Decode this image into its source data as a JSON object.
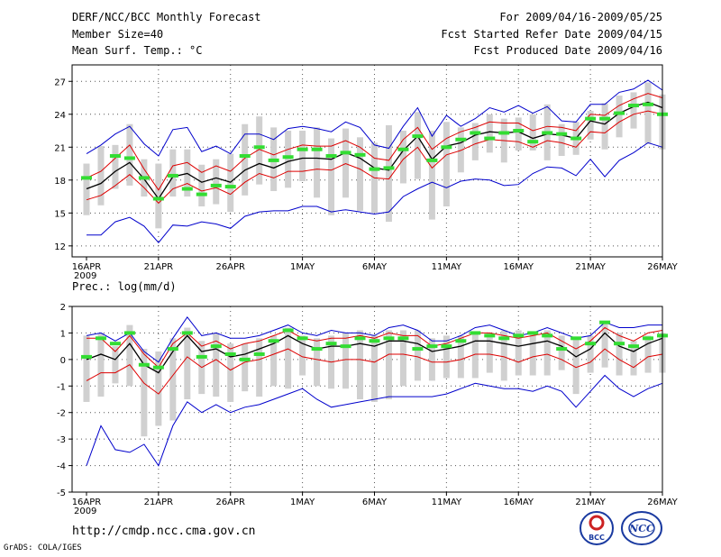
{
  "header": {
    "title": "DERF/NCC/BCC Monthly Forecast",
    "member_size": "Member Size=40",
    "variable": "Mean Surf. Temp.: °C",
    "period": "For 2009/04/16-2009/05/25",
    "started": "Fcst Started Refer Date 2009/04/15",
    "produced": "Fcst Produced Date 2009/04/16"
  },
  "footer": {
    "url": "http://cmdp.ncc.cma.gov.cn",
    "credit": "GrADS: COLA/IGES",
    "logo_bcc": "BCC",
    "logo_ncc": "NCC"
  },
  "colors": {
    "envelope": "#0000cc",
    "spread": "#dd0000",
    "mean": "#000000",
    "box": "#d0d0d0",
    "obs": "#33dd33"
  },
  "chart_data": [
    {
      "type": "line",
      "title": "Mean Surf. Temp.: °C",
      "x_start": "2009-04-16",
      "x_ticks": [
        "16APR",
        "21APR",
        "26APR",
        "1MAY",
        "6MAY",
        "11MAY",
        "16MAY",
        "21MAY",
        "26MAY"
      ],
      "x_year": "2009",
      "ylim": [
        11,
        28.5
      ],
      "yticks": [
        12,
        15,
        18,
        21,
        24,
        27
      ],
      "series": [
        {
          "name": "max",
          "values": [
            13,
            13,
            14.2,
            14.6,
            13.8,
            12.3,
            13.9,
            13.8,
            14.2,
            14,
            13.6,
            14.7,
            15.1,
            15.2,
            15.2,
            15.6,
            15.6,
            15.1,
            15.3,
            15.1,
            14.9,
            15.1,
            16.5,
            17.2,
            17.8,
            17.3,
            17.9,
            18.1,
            18,
            17.5,
            17.6,
            18.6,
            19.2,
            19.1,
            18.4,
            19.9,
            18.3,
            19.8,
            20.5,
            21.4,
            21
          ]
        },
        {
          "name": "min",
          "values": [
            20.4,
            21.2,
            22.2,
            22.9,
            21.3,
            20.2,
            22.6,
            22.8,
            20.6,
            21.1,
            20.4,
            22.2,
            22.2,
            21.7,
            22.7,
            22.9,
            22.7,
            22.4,
            23.3,
            22.8,
            21.2,
            20.9,
            22.9,
            24.6,
            22,
            23.9,
            22.9,
            23.6,
            24.6,
            24.2,
            24.8,
            24.1,
            24.7,
            23.4,
            23.3,
            24.9,
            24.9,
            26,
            26.3,
            27.1,
            26.2
          ]
        },
        {
          "name": "r1",
          "values": [
            18.2,
            18.8,
            20,
            21.2,
            19,
            17.1,
            19.3,
            19.6,
            18.7,
            19.3,
            18.8,
            20,
            20.8,
            20.3,
            20.8,
            21.2,
            21.1,
            21.1,
            21.6,
            21,
            20,
            19.8,
            21.7,
            22.8,
            20.8,
            21.8,
            22.4,
            22.8,
            23.3,
            23.2,
            23.2,
            22.5,
            22.9,
            22.8,
            22.5,
            24,
            23.9,
            24.8,
            25.4,
            25.9,
            25.5
          ]
        },
        {
          "name": "r2",
          "values": [
            16.2,
            16.6,
            17.5,
            18.5,
            17.3,
            15.9,
            17.2,
            17.7,
            17,
            17.3,
            16.7,
            17.8,
            18.6,
            18.2,
            18.8,
            18.8,
            19,
            18.9,
            19.5,
            19,
            18.2,
            18.1,
            19.9,
            21,
            19.1,
            20.3,
            20.7,
            21.3,
            21.7,
            21.6,
            21.5,
            21,
            21.6,
            21.4,
            21,
            22.4,
            22.3,
            23.3,
            24,
            24.3,
            24
          ]
        },
        {
          "name": "mean",
          "values": [
            17.2,
            17.7,
            18.8,
            19.6,
            18.1,
            16.3,
            18.3,
            18.6,
            17.8,
            18.2,
            17.8,
            18.9,
            19.5,
            19.1,
            19.7,
            20,
            20,
            19.9,
            20.5,
            20,
            19.1,
            18.9,
            20.7,
            22,
            19.9,
            21.1,
            21.4,
            22.1,
            22.4,
            22.3,
            22.4,
            21.8,
            22.2,
            22.1,
            21.8,
            23.4,
            23.1,
            24.1,
            24.7,
            25.1,
            24.6
          ]
        },
        {
          "name": "box_lo",
          "values": [
            14.8,
            15.7,
            17.2,
            17.5,
            16.5,
            13.6,
            16.5,
            16.5,
            15.6,
            15.8,
            15.1,
            16.6,
            17.6,
            17,
            17.3,
            17.9,
            16.4,
            14.8,
            16.4,
            15.2,
            15,
            14.2,
            17.7,
            18.1,
            14.4,
            15.6,
            18.7,
            19.8,
            20.5,
            19.6,
            20.7,
            20.7,
            19.8,
            20.2,
            20.3,
            21.7,
            20.8,
            21.9,
            22.7,
            21.3,
            20.8
          ]
        },
        {
          "name": "box_hi",
          "values": [
            19.5,
            21.1,
            21.2,
            23.1,
            19.9,
            19.5,
            20.8,
            20.8,
            19.4,
            19.9,
            20.4,
            23.1,
            23.8,
            22.8,
            22.5,
            22.5,
            22.8,
            21.8,
            22.7,
            21.9,
            21.4,
            23,
            22.5,
            24.2,
            22.5,
            23.3,
            22.8,
            23.2,
            24,
            23.6,
            23.7,
            24,
            24.9,
            23.1,
            23.3,
            24.3,
            25,
            25.7,
            26,
            26.9,
            25.8
          ]
        },
        {
          "name": "obs",
          "values": [
            18.2,
            null,
            20.2,
            20,
            18.2,
            16.3,
            18.4,
            17.2,
            16.7,
            17.5,
            17.4,
            20.2,
            21,
            19.8,
            20.1,
            20.8,
            20.8,
            20.2,
            20.5,
            20.3,
            19,
            19.1,
            20.8,
            22,
            19.8,
            21,
            21.7,
            22.3,
            21.8,
            22.3,
            22.5,
            21.5,
            22.3,
            22.2,
            21.8,
            23.6,
            23.6,
            24.1,
            24.8,
            24.9,
            24
          ]
        }
      ]
    },
    {
      "type": "line",
      "title": "Prec.: log(mm/d)",
      "x_start": "2009-04-16",
      "x_ticks": [
        "16APR",
        "21APR",
        "26APR",
        "1MAY",
        "6MAY",
        "11MAY",
        "16MAY",
        "21MAY",
        "26MAY"
      ],
      "x_year": "2009",
      "ylim": [
        -5,
        2
      ],
      "yticks": [
        -5,
        -4,
        -3,
        -2,
        -1,
        0,
        1,
        2
      ],
      "series": [
        {
          "name": "max",
          "values": [
            0.9,
            1,
            0.7,
            1,
            0.3,
            -0.1,
            0.8,
            1.6,
            0.9,
            1,
            0.8,
            0.8,
            0.9,
            1.1,
            1.3,
            1,
            0.9,
            1.1,
            1,
            1,
            0.9,
            1.2,
            1.3,
            1.1,
            0.7,
            0.7,
            0.9,
            1.2,
            1.3,
            1.1,
            0.9,
            1,
            1.2,
            1,
            0.8,
            0.9,
            1.4,
            1.2,
            1.2,
            1.3,
            1.3
          ]
        },
        {
          "name": "min",
          "values": [
            -4,
            -2.5,
            -3.4,
            -3.5,
            -3.2,
            -4,
            -2.5,
            -1.6,
            -2,
            -1.7,
            -2,
            -1.8,
            -1.7,
            -1.5,
            -1.3,
            -1.1,
            -1.5,
            -1.8,
            -1.7,
            -1.6,
            -1.5,
            -1.4,
            -1.4,
            -1.4,
            -1.4,
            -1.3,
            -1.1,
            -0.9,
            -1,
            -1.1,
            -1.1,
            -1.2,
            -1,
            -1.2,
            -1.8,
            -1.2,
            -0.6,
            -1.1,
            -1.4,
            -1.1,
            -0.9
          ]
        },
        {
          "name": "r1",
          "values": [
            0.8,
            0.8,
            0.3,
            0.9,
            0.2,
            -0.3,
            0.6,
            1,
            0.5,
            0.7,
            0.4,
            0.6,
            0.7,
            0.9,
            1.1,
            0.8,
            0.7,
            0.8,
            0.8,
            0.9,
            0.8,
            1,
            0.9,
            0.9,
            0.5,
            0.6,
            0.8,
            1,
            1,
            0.9,
            0.8,
            0.9,
            1,
            0.7,
            0.4,
            0.7,
            1.2,
            0.9,
            0.7,
            1,
            1.1
          ]
        },
        {
          "name": "r2",
          "values": [
            -0.8,
            -0.5,
            -0.5,
            -0.2,
            -0.9,
            -1.3,
            -0.6,
            0.1,
            -0.3,
            0,
            -0.4,
            -0.1,
            0,
            0.2,
            0.4,
            0.1,
            0,
            -0.1,
            0,
            0,
            -0.1,
            0.2,
            0.2,
            0.1,
            -0.1,
            -0.1,
            0,
            0.2,
            0.2,
            0.1,
            -0.1,
            0.1,
            0.2,
            0,
            -0.3,
            -0.1,
            0.4,
            0,
            -0.3,
            0.1,
            0.2
          ]
        },
        {
          "name": "mean",
          "values": [
            0,
            0.2,
            0,
            0.6,
            -0.2,
            -0.5,
            0.3,
            0.9,
            0.3,
            0.4,
            0.1,
            0.2,
            0.4,
            0.6,
            0.9,
            0.6,
            0.4,
            0.5,
            0.5,
            0.6,
            0.5,
            0.7,
            0.7,
            0.6,
            0.3,
            0.4,
            0.5,
            0.7,
            0.7,
            0.6,
            0.5,
            0.6,
            0.7,
            0.5,
            0.1,
            0.4,
            1,
            0.5,
            0.3,
            0.6,
            0.8
          ]
        },
        {
          "name": "box_lo",
          "values": [
            -1.6,
            -1.4,
            -0.9,
            -1,
            -2.9,
            -2.5,
            -2.3,
            -1.5,
            -1.3,
            -1.4,
            -1.6,
            -1.2,
            -1.4,
            -1,
            -1.1,
            -0.6,
            -1,
            -1.1,
            -1.1,
            -1.5,
            -1.6,
            -1.5,
            -1,
            -0.8,
            -0.8,
            -0.7,
            -0.7,
            -0.7,
            -0.5,
            -0.8,
            -0.6,
            -0.6,
            -0.6,
            -0.4,
            -1.3,
            -0.5,
            -0.3,
            -0.6,
            -0.6,
            -0.5,
            -0.5
          ]
        },
        {
          "name": "box_hi",
          "values": [
            0.9,
            1,
            0.5,
            1.3,
            0.4,
            0.3,
            0.8,
            1.2,
            0.7,
            1,
            0.6,
            0.6,
            0.8,
            0.9,
            1.2,
            0.9,
            0.8,
            0.9,
            1,
            1.1,
            0.9,
            1.1,
            1.1,
            1.1,
            0.8,
            0.9,
            0.9,
            1,
            1,
            1.1,
            1.1,
            1,
            1.1,
            0.9,
            0.8,
            0.9,
            1.4,
            1,
            0.7,
            0.9,
            1
          ]
        },
        {
          "name": "obs",
          "values": [
            0.1,
            0.8,
            0.6,
            1,
            -0.2,
            -0.3,
            0.4,
            1,
            0.1,
            0.5,
            0.2,
            0,
            0.2,
            0.7,
            1.1,
            0.8,
            0.4,
            0.6,
            0.5,
            0.8,
            0.7,
            0.8,
            0.8,
            0.4,
            0.5,
            0.5,
            0.7,
            1,
            0.9,
            0.8,
            0.9,
            1,
            0.9,
            0.4,
            0.8,
            0.6,
            1.4,
            0.6,
            0.5,
            0.8,
            0.9
          ]
        }
      ]
    }
  ]
}
